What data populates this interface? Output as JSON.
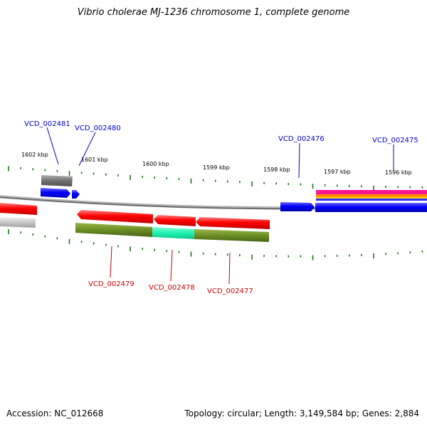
{
  "title": "Vibrio cholerae MJ-1236 chromosome 1, complete genome",
  "footer": {
    "accession": "Accession: NC_012668",
    "summary": "Topology: circular; Length: 3,149,584 bp; Genes: 2,884"
  },
  "colors": {
    "backbone": "#8c8c8c",
    "tick": "#1a7a1a",
    "label_top": "#0000cc",
    "label_bottom": "#cc0000",
    "gene_red": "#ff0000",
    "gene_blue": "#0000ff",
    "gene_gray": "#7a7a7a",
    "gene_olive": "#6b8e23",
    "gene_aqua": "#20f0b0",
    "gene_pink": "#ff1493",
    "gene_orange": "#ff8c00"
  },
  "scale_labels": [
    {
      "text": "1602 kbp",
      "kbp": 1602
    },
    {
      "text": "1601 kbp",
      "kbp": 1601
    },
    {
      "text": "1600 kbp",
      "kbp": 1600
    },
    {
      "text": "1599 kbp",
      "kbp": 1599
    },
    {
      "text": "1598 kbp",
      "kbp": 1598
    },
    {
      "text": "1597 kbp",
      "kbp": 1597
    },
    {
      "text": "1596 kbp",
      "kbp": 1596
    }
  ],
  "gene_labels_top": [
    "VCD_002481",
    "VCD_002480",
    "VCD_002476",
    "VCD_002475"
  ],
  "gene_labels_bottom": [
    "VCD_002479",
    "VCD_002478",
    "VCD_002477"
  ]
}
